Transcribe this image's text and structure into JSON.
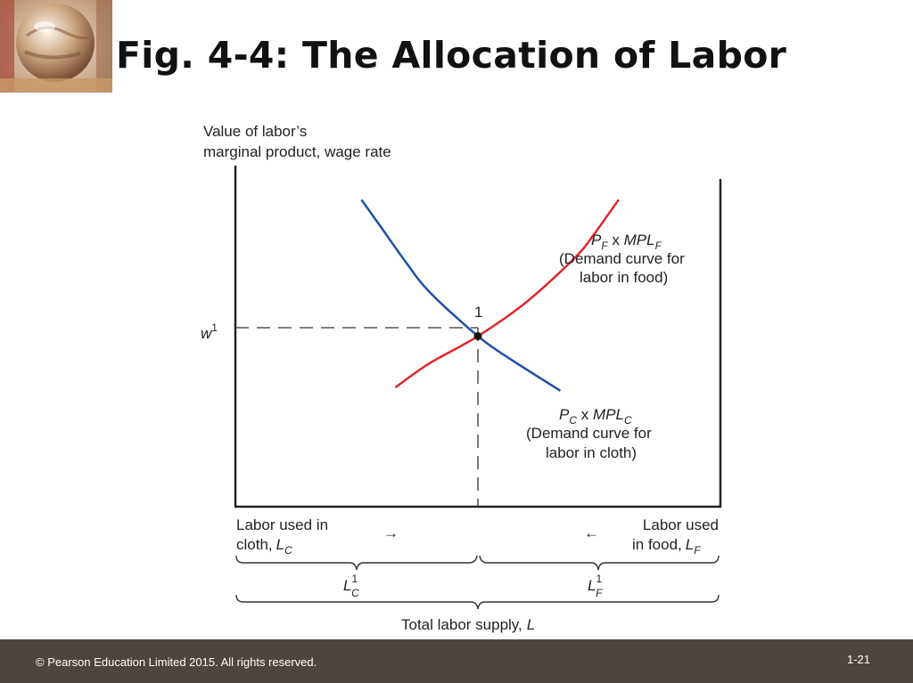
{
  "slide": {
    "title": "Fig. 4-4: The Allocation of Labor",
    "footer": {
      "copyright": "© Pearson Education Limited 2015. All rights reserved.",
      "slide_number": "1-21"
    }
  },
  "chart_data": {
    "type": "line",
    "title": "",
    "ylabel_line1": "Value of labor’s",
    "ylabel_line2": "marginal product, wage rate",
    "xlabel": "Total labor supply,",
    "xlabel_var": "L",
    "wage_label": "w",
    "wage_sup": "1",
    "equilibrium_label": "1",
    "series": [
      {
        "name": "PF x MPLF (Demand curve for labor in food)",
        "label_P": "P",
        "label_P_sub": "F",
        "label_mid": " x ",
        "label_MPL": "MPL",
        "label_MPL_sub": "F",
        "desc_line1": "(Demand curve for",
        "desc_line2": "labor in food)",
        "color": "#e0262b",
        "points": [
          [
            0.33,
            0.35
          ],
          [
            0.4,
            0.42
          ],
          [
            0.5,
            0.5
          ],
          [
            0.6,
            0.6
          ],
          [
            0.7,
            0.73
          ],
          [
            0.74,
            0.8
          ],
          [
            0.79,
            0.9
          ]
        ]
      },
      {
        "name": "PC x MPLC (Demand curve for labor in cloth)",
        "label_P": "P",
        "label_P_sub": "C",
        "label_mid": " x ",
        "label_MPL": "MPL",
        "label_MPL_sub": "C",
        "desc_line1": "(Demand curve for",
        "desc_line2": "labor in cloth)",
        "color": "#1f4fa8",
        "points": [
          [
            0.26,
            0.9
          ],
          [
            0.3,
            0.82
          ],
          [
            0.35,
            0.72
          ],
          [
            0.4,
            0.63
          ],
          [
            0.5,
            0.5
          ],
          [
            0.57,
            0.43
          ],
          [
            0.67,
            0.34
          ]
        ]
      }
    ],
    "equilibrium": {
      "x": 0.5,
      "y": 0.5
    },
    "xlim": [
      0,
      1
    ],
    "ylim": [
      0,
      1
    ],
    "lower_labels": {
      "cloth_line1": "Labor used in",
      "cloth_line2": "cloth,",
      "cloth_var": "L",
      "cloth_sub": "C",
      "food_line1": "Labor used",
      "food_line2": "in food,",
      "food_var": "L",
      "food_sub": "F",
      "arrow_right": "→",
      "arrow_left": "←",
      "lc1_var": "L",
      "lc1_sup": "1",
      "lc1_sub": "C",
      "lf1_var": "L",
      "lf1_sup": "1",
      "lf1_sub": "F"
    }
  }
}
